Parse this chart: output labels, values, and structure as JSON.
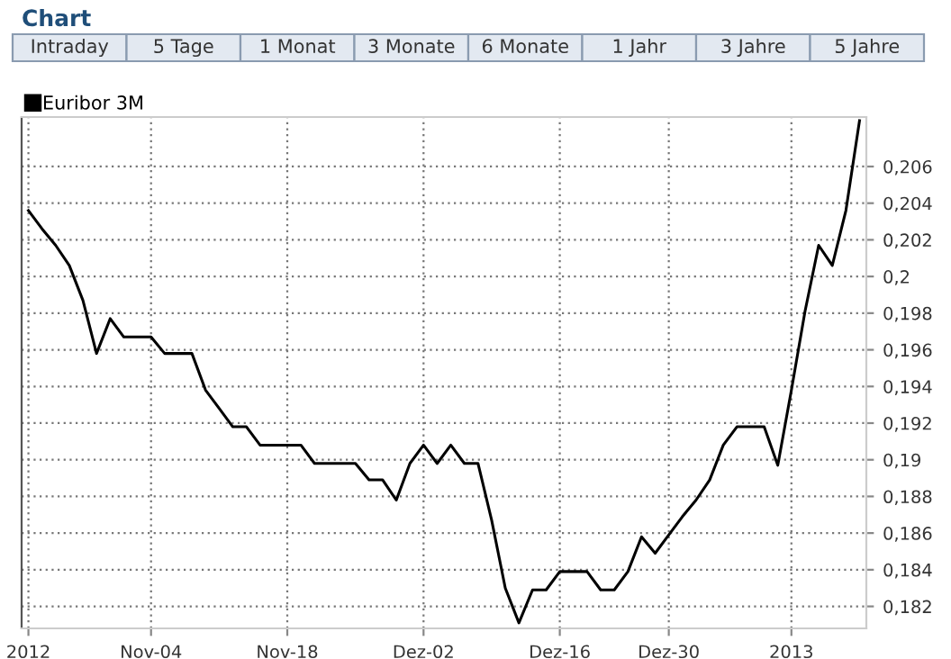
{
  "chart_data": {
    "type": "line",
    "title": "Chart",
    "annotations": [
      "Intraday",
      "5 Tage",
      "1 Monat",
      "3 Monate",
      "6 Monate",
      "1 Jahr",
      "3 Jahre",
      "5 Jahre"
    ],
    "categories": [
      "2012",
      null,
      null,
      null,
      null,
      null,
      null,
      null,
      null,
      "Nov-04",
      null,
      null,
      null,
      null,
      null,
      null,
      null,
      null,
      null,
      "Nov-18",
      null,
      null,
      null,
      null,
      null,
      null,
      null,
      null,
      null,
      "Dez-02",
      null,
      null,
      null,
      null,
      null,
      null,
      null,
      null,
      null,
      "Dez-16",
      null,
      null,
      null,
      null,
      null,
      null,
      null,
      "Dez-30",
      null,
      null,
      null,
      null,
      null,
      null,
      null,
      null,
      "2013",
      null,
      null,
      null,
      null,
      null
    ],
    "series": [
      {
        "name": "Euribor 3M",
        "color": "#000000",
        "values": [
          0.2036,
          0.2026,
          0.2017,
          0.2006,
          0.1987,
          0.1958,
          0.1977,
          0.1967,
          0.1967,
          0.1967,
          0.1958,
          0.1958,
          0.1958,
          0.1938,
          0.1928,
          0.1918,
          0.1918,
          0.1908,
          0.1908,
          0.1908,
          0.1908,
          0.1898,
          0.1898,
          0.1898,
          0.1898,
          0.1889,
          0.1889,
          0.1878,
          0.1898,
          0.1908,
          0.1898,
          0.1908,
          0.1898,
          0.1898,
          0.1867,
          0.183,
          0.1811,
          0.1829,
          0.1829,
          0.1839,
          0.1839,
          0.1839,
          0.1829,
          0.1829,
          0.1839,
          0.1858,
          0.1849,
          0.1859,
          0.1869,
          0.1878,
          0.1889,
          0.1908,
          0.1918,
          0.1918,
          0.1918,
          0.1897,
          0.1938,
          0.1981,
          0.2017,
          0.2006,
          0.2036,
          0.2085
        ]
      }
    ],
    "ylim": [
      0.1808,
      0.2087
    ],
    "yticks": [
      {
        "value": 0.182,
        "label": "0,182"
      },
      {
        "value": 0.184,
        "label": "0,184"
      },
      {
        "value": 0.186,
        "label": "0,186"
      },
      {
        "value": 0.188,
        "label": "0,188"
      },
      {
        "value": 0.19,
        "label": "0,19"
      },
      {
        "value": 0.192,
        "label": "0,192"
      },
      {
        "value": 0.194,
        "label": "0,194"
      },
      {
        "value": 0.196,
        "label": "0,196"
      },
      {
        "value": 0.198,
        "label": "0,198"
      },
      {
        "value": 0.2,
        "label": "0,2"
      },
      {
        "value": 0.202,
        "label": "0,202"
      },
      {
        "value": 0.204,
        "label": "0,204"
      },
      {
        "value": 0.206,
        "label": "0,206"
      }
    ],
    "grid": true,
    "legend": "top left",
    "marker": "none",
    "line_style": "solid"
  }
}
